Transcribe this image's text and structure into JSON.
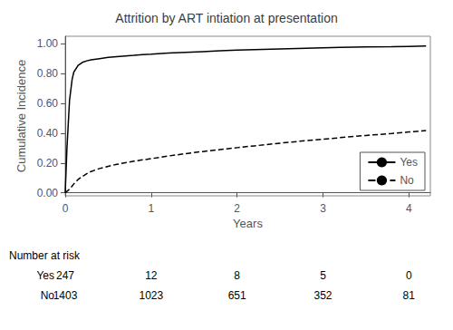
{
  "chart_data": {
    "type": "line",
    "title": "Attrition by ART intiation at presentation",
    "xlabel": "Years",
    "ylabel": "Cumulative Incidence",
    "x": [
      0,
      0.02,
      0.05,
      0.08,
      0.1,
      0.15,
      0.2,
      0.25,
      0.3,
      0.4,
      0.5,
      0.6,
      0.7,
      0.8,
      0.9,
      1.0,
      1.2,
      1.4,
      1.6,
      1.8,
      2.0,
      2.2,
      2.5,
      2.8,
      3.0,
      3.2,
      3.5,
      3.8,
      4.0,
      4.2
    ],
    "series": [
      {
        "name": "Yes",
        "color": "#000000",
        "line_style": "solid",
        "values": [
          0,
          0.3,
          0.62,
          0.76,
          0.81,
          0.855,
          0.875,
          0.885,
          0.892,
          0.9,
          0.908,
          0.913,
          0.918,
          0.922,
          0.927,
          0.93,
          0.937,
          0.942,
          0.947,
          0.952,
          0.957,
          0.96,
          0.965,
          0.97,
          0.973,
          0.975,
          0.978,
          0.98,
          0.982,
          0.984
        ]
      },
      {
        "name": "No",
        "color": "#000000",
        "line_style": "dashed",
        "values": [
          0,
          0.01,
          0.025,
          0.045,
          0.06,
          0.09,
          0.11,
          0.128,
          0.143,
          0.163,
          0.178,
          0.191,
          0.202,
          0.212,
          0.221,
          0.229,
          0.247,
          0.263,
          0.277,
          0.29,
          0.303,
          0.315,
          0.333,
          0.35,
          0.36,
          0.37,
          0.385,
          0.398,
          0.408,
          0.418
        ]
      }
    ],
    "xlim": [
      0,
      4.25
    ],
    "ylim": [
      -0.02,
      1.05
    ],
    "xticks": [
      0,
      1,
      2,
      3,
      4
    ],
    "yticks": [
      {
        "value": 0,
        "label": "0.00"
      },
      {
        "value": 0.2,
        "label": "0.20"
      },
      {
        "value": 0.4,
        "label": "0.40"
      },
      {
        "value": 0.6,
        "label": "0.60"
      },
      {
        "value": 0.8,
        "label": "0.80"
      },
      {
        "value": 1.0,
        "label": "1.00"
      }
    ],
    "grid": false,
    "legend": "lower right",
    "risk_table": {
      "title": "Number at risk",
      "times": [
        0,
        1,
        2,
        3,
        4
      ],
      "rows": [
        {
          "name": "Yes",
          "values": [
            247,
            12,
            8,
            5,
            0
          ]
        },
        {
          "name": "No",
          "values": [
            1403,
            1023,
            651,
            352,
            81
          ]
        }
      ]
    }
  }
}
